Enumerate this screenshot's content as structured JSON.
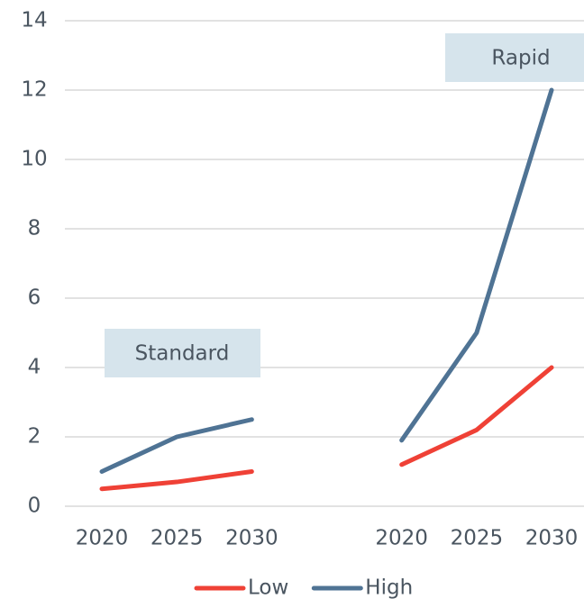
{
  "chart_data": {
    "type": "line",
    "categories": [
      "2020",
      "2025",
      "2030",
      null,
      "2020",
      "2025",
      "2030"
    ],
    "series": [
      {
        "name": "Low",
        "color": "#ef4136",
        "values": [
          0.5,
          0.7,
          1.0,
          null,
          1.2,
          2.2,
          4.0
        ]
      },
      {
        "name": "High",
        "color": "#4f7394",
        "values": [
          1.0,
          2.0,
          2.5,
          null,
          1.9,
          5.0,
          12.0
        ]
      }
    ],
    "annotations": [
      "Standard",
      "Rapid"
    ],
    "ylim": [
      0,
      14
    ],
    "yticks": [
      0,
      2,
      4,
      6,
      8,
      10,
      12,
      14
    ],
    "grid": true,
    "legend": "bottom"
  }
}
